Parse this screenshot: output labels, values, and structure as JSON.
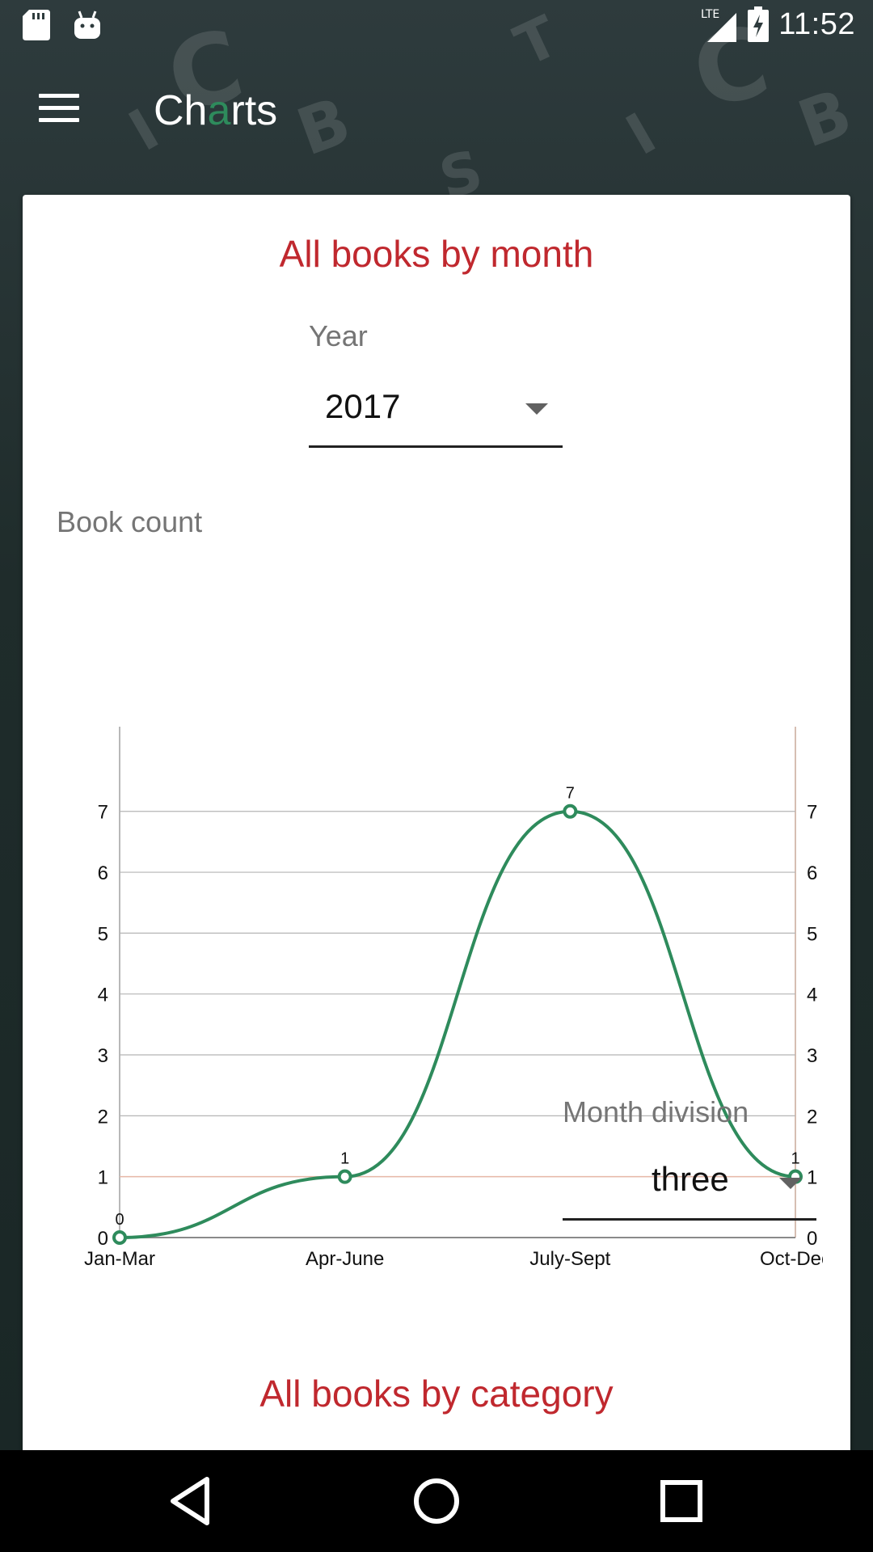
{
  "status_bar": {
    "icons": [
      "sd-card-icon",
      "android-icon",
      "lte-signal-icon",
      "battery-charging-icon"
    ],
    "network": "LTE",
    "time": "11:52"
  },
  "toolbar": {
    "title_part1": "Ch",
    "title_accent": "a",
    "title_part2": "rts",
    "accent_color": "#2e8b5c"
  },
  "section_month": {
    "title": "All books by month",
    "year_label": "Year",
    "year_value": "2017",
    "y_axis_title": "Book count",
    "division_label": "Month division",
    "division_value": "three"
  },
  "section_category": {
    "title": "All books by category"
  },
  "colors": {
    "title_red": "#c0282e",
    "line_green": "#2e8b5c",
    "limit_line": "#e8b8a8"
  },
  "chart_data": {
    "type": "line",
    "categories": [
      "Jan-Mar",
      "Apr-June",
      "July-Sept",
      "Oct-Dec"
    ],
    "values": [
      0,
      1,
      7,
      1
    ],
    "value_labels": [
      "0",
      "1",
      "7",
      "1"
    ],
    "ylim": [
      0,
      7.7
    ],
    "y_ticks": [
      0,
      1,
      2,
      3,
      4,
      5,
      6,
      7
    ],
    "smooth": true,
    "grid": true,
    "dual_y_axis": true,
    "legend": "none"
  }
}
